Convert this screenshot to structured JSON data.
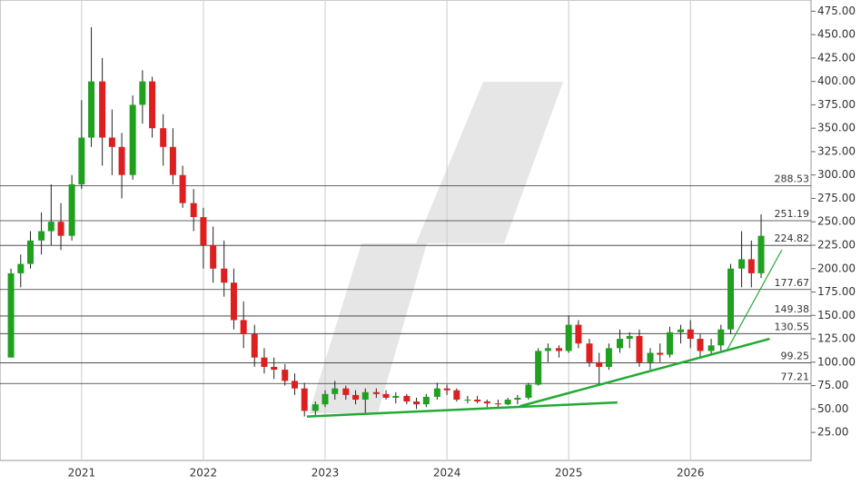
{
  "chart_data": {
    "type": "candlestick",
    "xlim": [
      2020.33,
      2026.99
    ],
    "xticks": [
      2021,
      2022,
      2023,
      2024,
      2025,
      2026
    ],
    "ylim": [
      -5,
      487
    ],
    "yticks": [
      {
        "value": 25,
        "label": "25.00"
      },
      {
        "value": 50,
        "label": "50.00"
      },
      {
        "value": 75,
        "label": "75.00"
      },
      {
        "value": 100,
        "label": "100.00"
      },
      {
        "value": 125,
        "label": "125.00"
      },
      {
        "value": 150,
        "label": "150.00"
      },
      {
        "value": 175,
        "label": "175.00"
      },
      {
        "value": 200,
        "label": "200.00"
      },
      {
        "value": 225,
        "label": "225.00"
      },
      {
        "value": 250,
        "label": "250.00"
      },
      {
        "value": 275,
        "label": "275.00"
      },
      {
        "value": 300,
        "label": "300.00"
      },
      {
        "value": 325,
        "label": "325.00"
      },
      {
        "value": 350,
        "label": "350.00"
      },
      {
        "value": 375,
        "label": "375.00"
      },
      {
        "value": 400,
        "label": "400.00"
      },
      {
        "value": 425,
        "label": "425.00"
      },
      {
        "value": 450,
        "label": "450.00"
      },
      {
        "value": 475,
        "label": "475.00"
      }
    ],
    "up_color": "#1fa01f",
    "down_color": "#dd1f1f",
    "x": [
      2020.42,
      2020.5,
      2020.58,
      2020.67,
      2020.75,
      2020.83,
      2020.92,
      2021.0,
      2021.08,
      2021.17,
      2021.25,
      2021.33,
      2021.42,
      2021.5,
      2021.58,
      2021.67,
      2021.75,
      2021.83,
      2021.92,
      2022.0,
      2022.08,
      2022.17,
      2022.25,
      2022.33,
      2022.42,
      2022.5,
      2022.58,
      2022.67,
      2022.75,
      2022.83,
      2022.92,
      2023.0,
      2023.08,
      2023.17,
      2023.25,
      2023.33,
      2023.42,
      2023.5,
      2023.58,
      2023.67,
      2023.75,
      2023.83,
      2023.92,
      2024.0,
      2024.08,
      2024.17,
      2024.25,
      2024.33,
      2024.42,
      2024.5,
      2024.58,
      2024.67,
      2024.75,
      2024.83,
      2024.92,
      2025.0,
      2025.08,
      2025.17,
      2025.25,
      2025.33,
      2025.42,
      2025.5,
      2025.58,
      2025.67,
      2025.75,
      2025.83,
      2025.92,
      2026.0,
      2026.08,
      2026.17,
      2026.25,
      2026.33,
      2026.42,
      2026.5,
      2026.58
    ],
    "open": [
      105,
      195,
      205,
      230,
      240,
      250,
      235,
      290,
      340,
      400,
      340,
      330,
      300,
      375,
      400,
      350,
      330,
      300,
      270,
      255,
      225,
      200,
      185,
      145,
      130,
      105,
      95,
      92,
      80,
      72,
      48,
      55,
      66,
      72,
      65,
      60,
      68,
      66,
      62,
      64,
      58,
      55,
      63,
      72,
      70,
      60,
      60,
      58,
      56,
      55,
      60,
      62,
      76,
      112,
      115,
      112,
      140,
      120,
      100,
      95,
      115,
      125,
      128,
      100,
      110,
      108,
      132,
      135,
      125,
      112,
      118,
      135,
      200,
      210,
      195
    ],
    "high": [
      200,
      215,
      240,
      260,
      290,
      270,
      300,
      380,
      458,
      425,
      370,
      345,
      385,
      412,
      405,
      365,
      350,
      310,
      285,
      265,
      245,
      230,
      200,
      165,
      140,
      115,
      105,
      98,
      88,
      78,
      58,
      70,
      80,
      75,
      70,
      72,
      72,
      70,
      68,
      66,
      62,
      66,
      78,
      76,
      72,
      64,
      64,
      60,
      60,
      62,
      65,
      78,
      115,
      120,
      118,
      150,
      145,
      125,
      110,
      120,
      135,
      132,
      135,
      115,
      120,
      138,
      140,
      145,
      130,
      125,
      140,
      205,
      240,
      230,
      258
    ],
    "low": [
      105,
      180,
      200,
      215,
      225,
      220,
      230,
      285,
      330,
      310,
      300,
      275,
      295,
      355,
      340,
      310,
      290,
      265,
      240,
      200,
      185,
      170,
      135,
      115,
      95,
      88,
      82,
      75,
      65,
      42,
      42,
      52,
      60,
      60,
      55,
      45,
      62,
      60,
      56,
      55,
      50,
      52,
      60,
      65,
      58,
      56,
      56,
      52,
      52,
      54,
      55,
      60,
      75,
      100,
      105,
      110,
      115,
      95,
      76,
      92,
      110,
      115,
      95,
      92,
      100,
      105,
      120,
      115,
      105,
      108,
      112,
      130,
      180,
      180,
      190
    ],
    "close": [
      195,
      205,
      230,
      240,
      250,
      235,
      290,
      340,
      400,
      340,
      330,
      300,
      375,
      400,
      350,
      330,
      300,
      270,
      255,
      225,
      200,
      185,
      145,
      130,
      105,
      95,
      92,
      80,
      72,
      48,
      55,
      66,
      72,
      65,
      60,
      68,
      66,
      62,
      64,
      58,
      55,
      63,
      72,
      70,
      60,
      60,
      58,
      56,
      55,
      60,
      62,
      76,
      112,
      115,
      112,
      140,
      120,
      100,
      95,
      115,
      125,
      128,
      100,
      110,
      108,
      132,
      135,
      125,
      112,
      118,
      135,
      200,
      210,
      195,
      235
    ],
    "levels": [
      288.53,
      251.19,
      224.82,
      177.67,
      149.38,
      130.55,
      99.25,
      77.21
    ],
    "trendline_color": "#22aa33",
    "trendlines": [
      {
        "x": [
          2022.85,
          2025.4
        ],
        "y": [
          42,
          57
        ]
      },
      {
        "x": [
          2024.6,
          2026.65
        ],
        "y": [
          53,
          125
        ]
      },
      {
        "x": [
          2026.3,
          2026.75
        ],
        "y": [
          113,
          220
        ]
      }
    ]
  }
}
